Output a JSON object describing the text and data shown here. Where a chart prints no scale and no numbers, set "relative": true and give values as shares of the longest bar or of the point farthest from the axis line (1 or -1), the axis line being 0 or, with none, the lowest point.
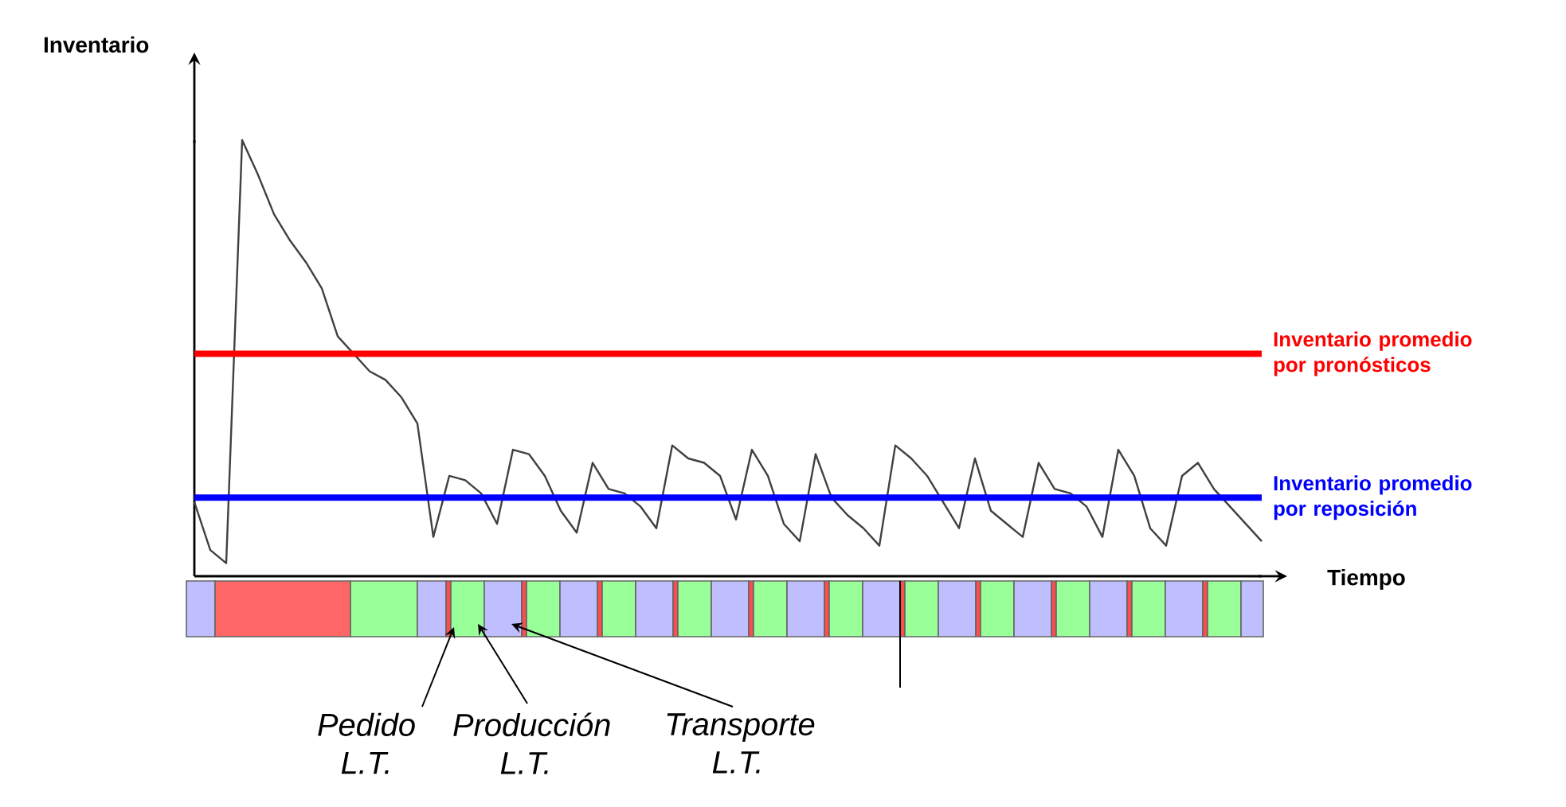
{
  "chart_data": {
    "type": "line",
    "relative": true,
    "xlabel": "Tiempo",
    "ylabel": "Inventario",
    "categories": [
      null,
      null,
      null,
      null,
      null,
      null,
      null,
      null,
      null,
      null,
      null,
      null,
      null,
      null,
      null,
      null,
      null,
      null,
      null,
      null,
      null,
      null,
      null,
      null,
      null,
      null,
      null,
      null,
      null,
      null,
      null,
      null,
      null,
      null,
      null,
      null,
      null,
      null,
      null,
      null,
      null,
      null,
      null,
      null,
      null,
      null,
      null,
      null,
      null,
      null,
      null,
      null,
      null,
      null,
      null,
      null,
      null,
      null,
      null,
      null,
      null,
      null,
      null,
      null,
      null,
      null,
      null,
      null
    ],
    "values": [
      0.17,
      0.06,
      0.03,
      1,
      0.92,
      0.83,
      0.77,
      0.72,
      0.66,
      0.55,
      0.51,
      0.47,
      0.45,
      0.41,
      0.35,
      0.09,
      0.23,
      0.22,
      0.19,
      0.12,
      0.29,
      0.28,
      0.23,
      0.15,
      0.1,
      0.26,
      0.2,
      0.19,
      0.16,
      0.11,
      0.3,
      0.27,
      0.26,
      0.23,
      0.13,
      0.29,
      0.23,
      0.12,
      0.08,
      0.28,
      0.18,
      0.14,
      0.11,
      0.07,
      0.3,
      0.27,
      0.23,
      0.17,
      0.11,
      0.27,
      0.15,
      0.12,
      0.09,
      0.26,
      0.2,
      0.19,
      0.16,
      0.09,
      0.29,
      0.23,
      0.11,
      0.07,
      0.23,
      0.26,
      0.2,
      0.16,
      0.12,
      0.08
    ],
    "color": "#404040",
    "ref_lines": [
      {
        "axis": "y",
        "value": 0.51,
        "label": "Inventario promedio por pronósticos",
        "color": "#ff0000"
      },
      {
        "axis": "y",
        "value": 0.18,
        "label": "Inventario promedio por reposición",
        "color": "#0000ff"
      }
    ],
    "annotations": [
      "Pedido L.T.",
      "Producción L.T.",
      "Transporte L.T."
    ]
  }
}
